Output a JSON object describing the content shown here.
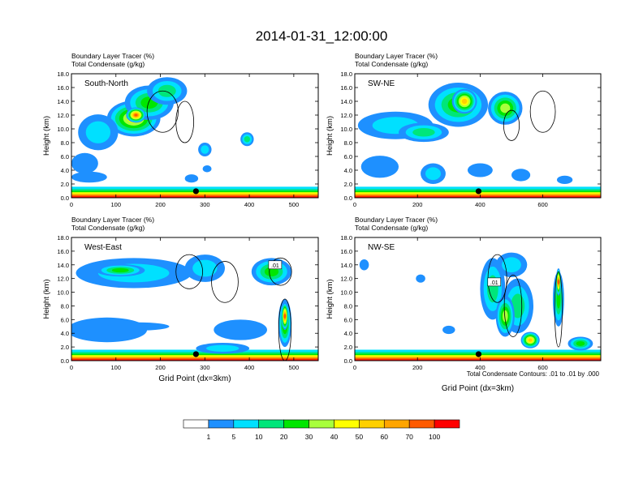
{
  "figure": {
    "title": "2014-01-31_12:00:00",
    "footnote": "Total Condensate Contours: .01 to .01 by .000"
  },
  "colorbar": {
    "colors": [
      "#ffffff",
      "#1e90ff",
      "#00e0ff",
      "#00e67a",
      "#00e600",
      "#a8ff3c",
      "#ffff00",
      "#ffd000",
      "#ffa500",
      "#ff5a00",
      "#ff0000"
    ],
    "labels": [
      "1",
      "5",
      "10",
      "20",
      "30",
      "40",
      "50",
      "60",
      "70",
      "100"
    ]
  },
  "chart_data": [
    {
      "type": "heatmap",
      "panel_label": "South-North",
      "left_title_1": "Boundary Layer Tracer   (%)",
      "left_title_2": "Total Condensate   (g/kg)",
      "ylabel": "Height (km)",
      "xlabel": "",
      "xlim": [
        0,
        555
      ],
      "ylim": [
        0,
        18
      ],
      "x_ticks": [
        0,
        100,
        200,
        300,
        400,
        500
      ],
      "y_ticks": [
        "0.0",
        "2.0",
        "4.0",
        "6.0",
        "8.0",
        "10.0",
        "12.0",
        "14.0",
        "16.0",
        "18.0"
      ],
      "marker_x": 280,
      "contour_label": "",
      "blobs": [
        {
          "x": 140,
          "y": 11.5,
          "rx": 60,
          "ry": 2.6,
          "level": 6
        },
        {
          "x": 175,
          "y": 13.8,
          "rx": 55,
          "ry": 2.5,
          "level": 4
        },
        {
          "x": 215,
          "y": 15.5,
          "rx": 45,
          "ry": 2.0,
          "level": 3
        },
        {
          "x": 145,
          "y": 12.0,
          "rx": 22,
          "ry": 1.1,
          "level": 9
        },
        {
          "x": 60,
          "y": 9.5,
          "rx": 45,
          "ry": 2.6,
          "level": 2
        },
        {
          "x": 30,
          "y": 5.0,
          "rx": 30,
          "ry": 1.5,
          "level": 1
        },
        {
          "x": 40,
          "y": 3.0,
          "rx": 40,
          "ry": 0.8,
          "level": 1
        },
        {
          "x": 300,
          "y": 7.0,
          "rx": 15,
          "ry": 1.0,
          "level": 2
        },
        {
          "x": 305,
          "y": 4.2,
          "rx": 10,
          "ry": 0.5,
          "level": 1
        },
        {
          "x": 395,
          "y": 8.5,
          "rx": 15,
          "ry": 1.0,
          "level": 3
        },
        {
          "x": 270,
          "y": 2.8,
          "rx": 15,
          "ry": 0.6,
          "level": 1
        }
      ],
      "contours": [
        {
          "x": 205,
          "y": 12.5,
          "rx": 35,
          "ry": 3.0
        },
        {
          "x": 255,
          "y": 11.0,
          "rx": 20,
          "ry": 3.0
        }
      ]
    },
    {
      "type": "heatmap",
      "panel_label": "SW-NE",
      "left_title_1": "Boundary Layer Tracer   (%)",
      "left_title_2": "Total Condensate   (g/kg)",
      "ylabel": "Height (km)",
      "xlabel": "",
      "xlim": [
        0,
        785
      ],
      "ylim": [
        0,
        18
      ],
      "x_ticks": [
        0,
        200,
        400,
        600
      ],
      "y_ticks": [
        "0.0",
        "2.0",
        "4.0",
        "6.0",
        "8.0",
        "10.0",
        "12.0",
        "14.0",
        "16.0",
        "18.0"
      ],
      "marker_x": 395,
      "contour_label": "",
      "blobs": [
        {
          "x": 330,
          "y": 13.5,
          "rx": 95,
          "ry": 3.2,
          "level": 4
        },
        {
          "x": 350,
          "y": 14.0,
          "rx": 40,
          "ry": 1.8,
          "level": 7
        },
        {
          "x": 480,
          "y": 13.0,
          "rx": 55,
          "ry": 2.4,
          "level": 5
        },
        {
          "x": 130,
          "y": 10.5,
          "rx": 120,
          "ry": 2.0,
          "level": 2
        },
        {
          "x": 220,
          "y": 9.5,
          "rx": 80,
          "ry": 1.4,
          "level": 3
        },
        {
          "x": 80,
          "y": 4.5,
          "rx": 60,
          "ry": 1.6,
          "level": 1
        },
        {
          "x": 400,
          "y": 4.0,
          "rx": 40,
          "ry": 1.0,
          "level": 1
        },
        {
          "x": 530,
          "y": 3.3,
          "rx": 30,
          "ry": 0.9,
          "level": 1
        },
        {
          "x": 670,
          "y": 2.6,
          "rx": 25,
          "ry": 0.6,
          "level": 1
        },
        {
          "x": 250,
          "y": 3.5,
          "rx": 40,
          "ry": 1.5,
          "level": 2
        }
      ],
      "contours": [
        {
          "x": 600,
          "y": 12.5,
          "rx": 40,
          "ry": 3.0
        },
        {
          "x": 500,
          "y": 10.5,
          "rx": 25,
          "ry": 2.2
        }
      ]
    },
    {
      "type": "heatmap",
      "panel_label": "West-East",
      "left_title_1": "Boundary Layer Tracer   (%)",
      "left_title_2": "Total Condensate   (g/kg)",
      "ylabel": "Height (km)",
      "xlabel": "Grid Point (dx=3km)",
      "xlim": [
        0,
        555
      ],
      "ylim": [
        0,
        18
      ],
      "x_ticks": [
        0,
        100,
        200,
        300,
        400,
        500
      ],
      "y_ticks": [
        "0.0",
        "2.0",
        "4.0",
        "6.0",
        "8.0",
        "10.0",
        "12.0",
        "14.0",
        "16.0",
        "18.0"
      ],
      "marker_x": 280,
      "contour_label": ".01",
      "label_x": 458,
      "label_y": 14.0,
      "blobs": [
        {
          "x": 140,
          "y": 12.8,
          "rx": 130,
          "ry": 2.2,
          "level": 2
        },
        {
          "x": 110,
          "y": 13.2,
          "rx": 55,
          "ry": 0.9,
          "level": 4
        },
        {
          "x": 300,
          "y": 13.5,
          "rx": 45,
          "ry": 2.0,
          "level": 2
        },
        {
          "x": 450,
          "y": 13.0,
          "rx": 45,
          "ry": 2.0,
          "level": 4
        },
        {
          "x": 80,
          "y": 4.5,
          "rx": 90,
          "ry": 1.8,
          "level": 1
        },
        {
          "x": 150,
          "y": 5.0,
          "rx": 70,
          "ry": 0.6,
          "level": 1
        },
        {
          "x": 380,
          "y": 4.5,
          "rx": 60,
          "ry": 1.5,
          "level": 1
        },
        {
          "x": 480,
          "y": 5.5,
          "rx": 15,
          "ry": 3.5,
          "level": 5
        },
        {
          "x": 480,
          "y": 6.5,
          "rx": 8,
          "ry": 2.0,
          "level": 9
        },
        {
          "x": 340,
          "y": 1.8,
          "rx": 60,
          "ry": 0.8,
          "level": 2
        }
      ],
      "contours": [
        {
          "x": 265,
          "y": 13.0,
          "rx": 30,
          "ry": 2.5
        },
        {
          "x": 345,
          "y": 11.5,
          "rx": 30,
          "ry": 3.0
        },
        {
          "x": 470,
          "y": 13.0,
          "rx": 25,
          "ry": 2.0
        },
        {
          "x": 480,
          "y": 4.5,
          "rx": 14,
          "ry": 4.5
        }
      ]
    },
    {
      "type": "heatmap",
      "panel_label": "NW-SE",
      "left_title_1": "Boundary Layer Tracer   (%)",
      "left_title_2": "Total Condensate   (g/kg)",
      "ylabel": "Height (km)",
      "xlabel": "Grid Point (dx=3km)",
      "xlim": [
        0,
        785
      ],
      "ylim": [
        0,
        18
      ],
      "x_ticks": [
        0,
        200,
        400,
        600
      ],
      "y_ticks": [
        "0.0",
        "2.0",
        "4.0",
        "6.0",
        "8.0",
        "10.0",
        "12.0",
        "14.0",
        "16.0",
        "18.0"
      ],
      "marker_x": 395,
      "contour_label": ".01",
      "label_x": 445,
      "label_y": 11.5,
      "blobs": [
        {
          "x": 440,
          "y": 10.5,
          "rx": 40,
          "ry": 4.5,
          "level": 3
        },
        {
          "x": 520,
          "y": 8.0,
          "rx": 50,
          "ry": 4.0,
          "level": 3
        },
        {
          "x": 500,
          "y": 14.0,
          "rx": 50,
          "ry": 1.8,
          "level": 2
        },
        {
          "x": 650,
          "y": 9.0,
          "rx": 18,
          "ry": 4.0,
          "level": 4
        },
        {
          "x": 650,
          "y": 11.5,
          "rx": 8,
          "ry": 2.0,
          "level": 9
        },
        {
          "x": 480,
          "y": 6.5,
          "rx": 30,
          "ry": 3.0,
          "level": 5
        },
        {
          "x": 560,
          "y": 3.0,
          "rx": 30,
          "ry": 1.2,
          "level": 7
        },
        {
          "x": 720,
          "y": 2.5,
          "rx": 40,
          "ry": 1.0,
          "level": 4
        },
        {
          "x": 30,
          "y": 14.0,
          "rx": 15,
          "ry": 0.8,
          "level": 1
        },
        {
          "x": 210,
          "y": 12.0,
          "rx": 15,
          "ry": 0.6,
          "level": 1
        },
        {
          "x": 300,
          "y": 4.5,
          "rx": 20,
          "ry": 0.6,
          "level": 1
        }
      ],
      "contours": [
        {
          "x": 455,
          "y": 12.0,
          "rx": 30,
          "ry": 3.5
        },
        {
          "x": 505,
          "y": 8.0,
          "rx": 28,
          "ry": 4.5
        },
        {
          "x": 650,
          "y": 7.5,
          "rx": 12,
          "ry": 5.5
        }
      ]
    }
  ]
}
